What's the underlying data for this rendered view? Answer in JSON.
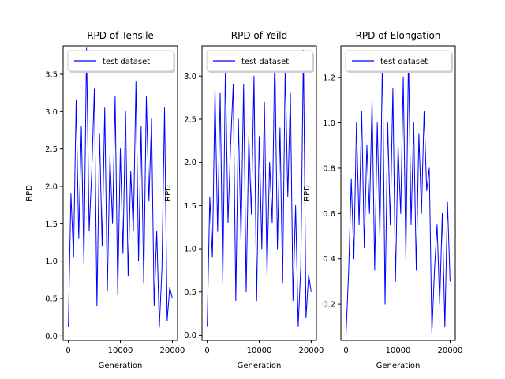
{
  "chart_data": [
    {
      "type": "line",
      "title": "RPD of Tensile",
      "xlabel": "Generation",
      "ylabel": "RPD",
      "xlim": [
        -1000,
        21000
      ],
      "ylim": [
        -0.06,
        3.88
      ],
      "xticks": [
        0,
        10000,
        20000
      ],
      "xtick_labels": [
        "0",
        "10000",
        "20000"
      ],
      "yticks": [
        0.0,
        0.5,
        1.0,
        1.5,
        2.0,
        2.5,
        3.0,
        3.5
      ],
      "ytick_labels": [
        "0.0",
        "0.5",
        "1.0",
        "1.5",
        "2.0",
        "2.5",
        "3.0",
        "3.5"
      ],
      "legend": {
        "position": "top-left",
        "entries": [
          "test dataset"
        ]
      },
      "series": [
        {
          "name": "test dataset",
          "color": "#0000ff",
          "x": [
            0,
            500,
            1000,
            1500,
            2000,
            2500,
            3000,
            3500,
            4000,
            4500,
            5000,
            5500,
            6000,
            6500,
            7000,
            7500,
            8000,
            8500,
            9000,
            9500,
            10000,
            10500,
            11000,
            11500,
            12000,
            12500,
            13000,
            13500,
            14000,
            14500,
            15000,
            15500,
            16000,
            16500,
            17000,
            17500,
            18000,
            18500,
            19000,
            19500,
            20000
          ],
          "y": [
            0.12,
            1.9,
            1.05,
            3.15,
            1.3,
            2.8,
            0.95,
            3.85,
            1.4,
            2.2,
            3.3,
            0.4,
            2.7,
            1.2,
            3.05,
            0.6,
            2.4,
            1.5,
            3.2,
            0.55,
            2.5,
            1.1,
            3.0,
            0.8,
            2.2,
            1.4,
            3.4,
            1.0,
            2.8,
            0.7,
            3.2,
            1.8,
            2.9,
            0.4,
            1.4,
            0.12,
            0.9,
            3.05,
            0.2,
            0.65,
            0.5
          ]
        }
      ]
    },
    {
      "type": "line",
      "title": "RPD of Yeild",
      "xlabel": "Generation",
      "ylabel": "RPD",
      "xlim": [
        -1000,
        21000
      ],
      "ylim": [
        -0.06,
        3.35
      ],
      "xticks": [
        0,
        10000,
        20000
      ],
      "xtick_labels": [
        "0",
        "10000",
        "20000"
      ],
      "yticks": [
        0.0,
        0.5,
        1.0,
        1.5,
        2.0,
        2.5,
        3.0
      ],
      "ytick_labels": [
        "0.0",
        "0.5",
        "1.0",
        "1.5",
        "2.0",
        "2.5",
        "3.0"
      ],
      "legend": {
        "position": "top-left",
        "entries": [
          "test dataset"
        ]
      },
      "series": [
        {
          "name": "test dataset",
          "color": "#0000ff",
          "x": [
            0,
            500,
            1000,
            1500,
            2000,
            2500,
            3000,
            3500,
            4000,
            4500,
            5000,
            5500,
            6000,
            6500,
            7000,
            7500,
            8000,
            8500,
            9000,
            9500,
            10000,
            10500,
            11000,
            11500,
            12000,
            12500,
            13000,
            13500,
            14000,
            14500,
            15000,
            15500,
            16000,
            16500,
            17000,
            17500,
            18000,
            18500,
            19000,
            19500,
            20000
          ],
          "y": [
            0.1,
            1.6,
            0.9,
            2.85,
            1.2,
            2.8,
            0.6,
            3.1,
            1.3,
            2.2,
            2.9,
            0.4,
            2.5,
            1.1,
            2.9,
            0.5,
            2.3,
            1.4,
            3.0,
            0.4,
            2.3,
            1.0,
            2.7,
            0.7,
            2.0,
            1.3,
            3.3,
            1.0,
            2.4,
            0.6,
            3.1,
            1.6,
            2.8,
            0.4,
            1.5,
            0.1,
            0.8,
            3.3,
            0.2,
            0.7,
            0.5
          ]
        }
      ]
    },
    {
      "type": "line",
      "title": "RPD of Elongation",
      "xlabel": "Generation",
      "ylabel": "RPD",
      "xlim": [
        -1000,
        21000
      ],
      "ylim": [
        0.04,
        1.34
      ],
      "xticks": [
        0,
        10000,
        20000
      ],
      "xtick_labels": [
        "0",
        "10000",
        "20000"
      ],
      "yticks": [
        0.2,
        0.4,
        0.6,
        0.8,
        1.0,
        1.2
      ],
      "ytick_labels": [
        "0.2",
        "0.4",
        "0.6",
        "0.8",
        "1.0",
        "1.2"
      ],
      "legend": {
        "position": "top-left",
        "entries": [
          "test dataset"
        ]
      },
      "series": [
        {
          "name": "test dataset",
          "color": "#0000ff",
          "x": [
            0,
            500,
            1000,
            1500,
            2000,
            2500,
            3000,
            3500,
            4000,
            4500,
            5000,
            5500,
            6000,
            6500,
            7000,
            7500,
            8000,
            8500,
            9000,
            9500,
            10000,
            10500,
            11000,
            11500,
            12000,
            12500,
            13000,
            13500,
            14000,
            14500,
            15000,
            15500,
            16000,
            16500,
            17000,
            17500,
            18000,
            18500,
            19000,
            19500,
            20000
          ],
          "y": [
            0.07,
            0.35,
            0.75,
            0.4,
            1.0,
            0.55,
            1.05,
            0.45,
            0.9,
            0.6,
            1.1,
            0.35,
            1.0,
            0.5,
            1.3,
            0.2,
            1.0,
            0.55,
            1.15,
            0.3,
            0.9,
            0.6,
            1.2,
            0.4,
            1.3,
            0.55,
            1.0,
            0.35,
            0.95,
            0.6,
            1.05,
            0.7,
            0.8,
            0.07,
            0.35,
            0.55,
            0.2,
            0.6,
            0.1,
            0.65,
            0.3
          ]
        }
      ]
    }
  ]
}
